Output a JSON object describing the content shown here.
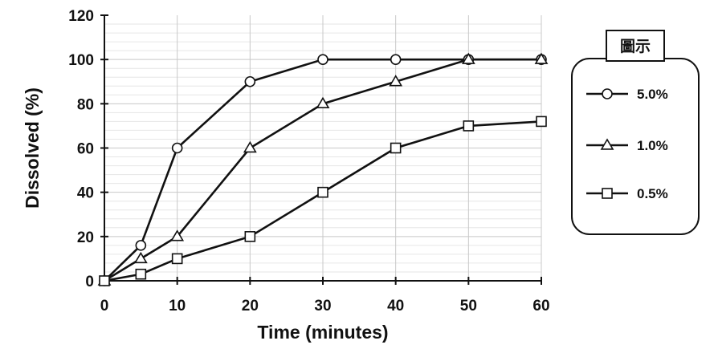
{
  "chart_data": {
    "type": "line",
    "xlabel": "Time (minutes)",
    "ylabel": "Dissolved (%)",
    "xlim": [
      0,
      60
    ],
    "ylim": [
      0,
      120
    ],
    "x_ticks": [
      0,
      10,
      20,
      30,
      40,
      50,
      60
    ],
    "y_ticks": [
      0,
      20,
      40,
      60,
      80,
      100,
      120
    ],
    "grid": true,
    "legend_title": "圖示",
    "legend_position": "right",
    "series": [
      {
        "name": "5.0%",
        "marker": "circle",
        "points": [
          [
            0,
            0
          ],
          [
            5,
            16
          ],
          [
            10,
            60
          ],
          [
            20,
            90
          ],
          [
            30,
            100
          ],
          [
            40,
            100
          ],
          [
            50,
            100
          ],
          [
            60,
            100
          ]
        ]
      },
      {
        "name": "1.0%",
        "marker": "triangle",
        "points": [
          [
            0,
            0
          ],
          [
            5,
            10
          ],
          [
            10,
            20
          ],
          [
            20,
            60
          ],
          [
            30,
            80
          ],
          [
            40,
            90
          ],
          [
            50,
            100
          ],
          [
            60,
            100
          ]
        ]
      },
      {
        "name": "0.5%",
        "marker": "square",
        "points": [
          [
            0,
            0
          ],
          [
            5,
            3
          ],
          [
            10,
            10
          ],
          [
            20,
            20
          ],
          [
            30,
            40
          ],
          [
            40,
            60
          ],
          [
            50,
            70
          ],
          [
            60,
            72
          ]
        ]
      }
    ]
  }
}
